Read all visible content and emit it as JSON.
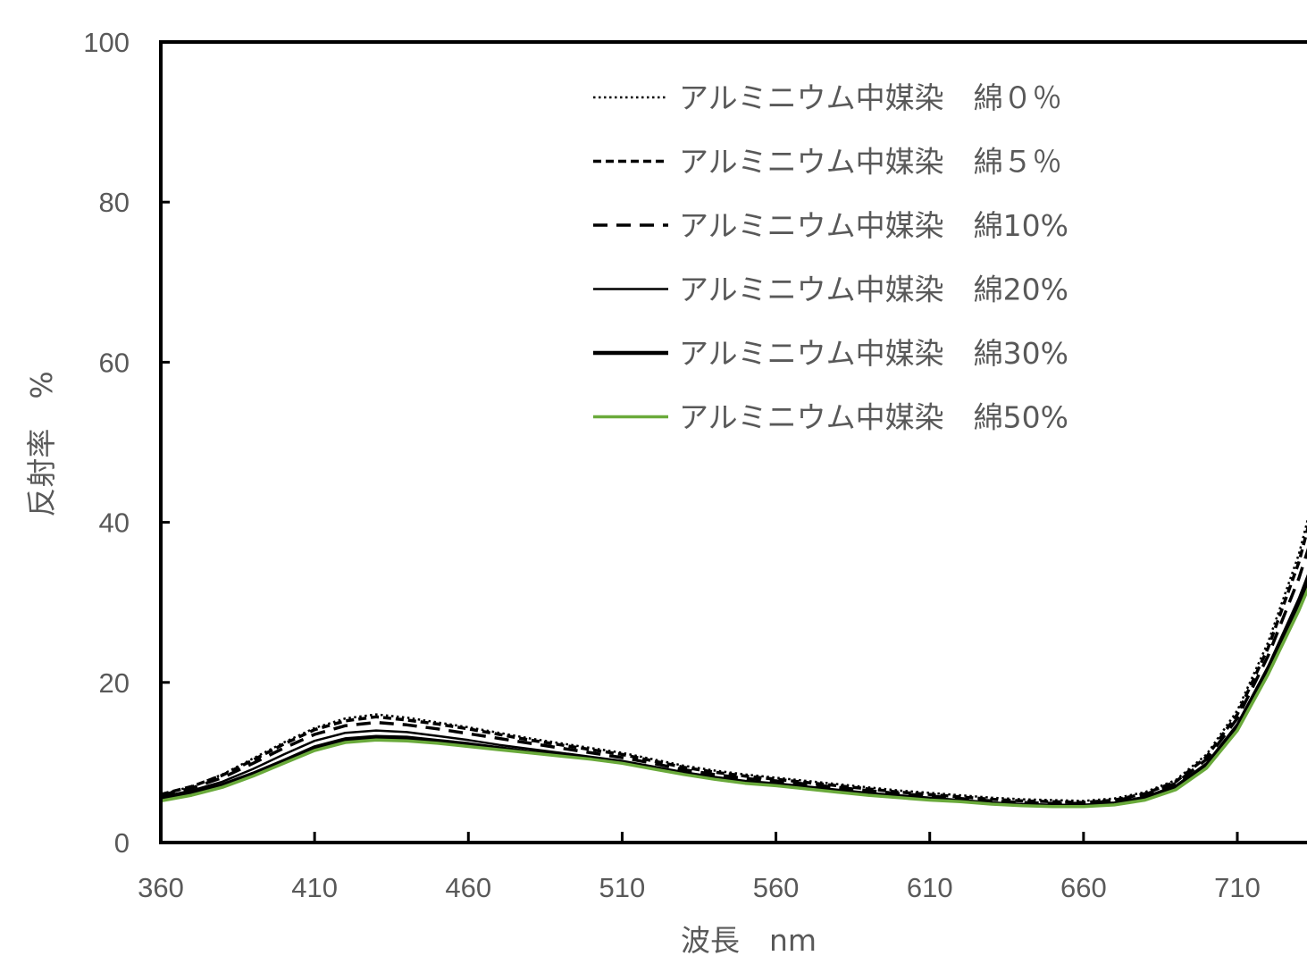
{
  "chart_data": {
    "type": "line",
    "title": "",
    "xlabel": "波長　nm",
    "ylabel": "反射率　%",
    "xlim": [
      360,
      735
    ],
    "ylim": [
      0,
      100
    ],
    "x_ticks": [
      360,
      410,
      460,
      510,
      560,
      610,
      660,
      710
    ],
    "y_ticks": [
      0,
      20,
      40,
      60,
      80,
      100
    ],
    "grid": false,
    "legend_position": "top-right",
    "x": [
      360,
      370,
      380,
      390,
      400,
      410,
      420,
      430,
      440,
      450,
      460,
      470,
      480,
      490,
      500,
      510,
      520,
      530,
      540,
      550,
      560,
      570,
      580,
      590,
      600,
      610,
      620,
      630,
      640,
      650,
      660,
      670,
      680,
      690,
      700,
      710,
      720,
      730,
      735
    ],
    "series": [
      {
        "name": "アルミニウム中媒染　綿０％",
        "style": "dotted",
        "color": "#000000",
        "values": [
          6.0,
          7.0,
          8.5,
          10.5,
          12.5,
          14.3,
          15.5,
          16.0,
          15.6,
          15.0,
          14.4,
          13.7,
          13.0,
          12.4,
          11.8,
          11.2,
          10.4,
          9.6,
          9.0,
          8.5,
          8.1,
          7.7,
          7.3,
          6.9,
          6.5,
          6.2,
          5.9,
          5.6,
          5.4,
          5.3,
          5.2,
          5.5,
          6.3,
          7.8,
          11.0,
          16.5,
          25.0,
          36.0,
          43.5
        ]
      },
      {
        "name": "アルミニウム中媒染　綿５％",
        "style": "dashed-short",
        "color": "#000000",
        "values": [
          6.0,
          7.0,
          8.4,
          10.3,
          12.3,
          14.1,
          15.2,
          15.7,
          15.3,
          14.8,
          14.2,
          13.5,
          12.8,
          12.2,
          11.6,
          11.0,
          10.2,
          9.4,
          8.8,
          8.3,
          7.9,
          7.5,
          7.1,
          6.7,
          6.3,
          6.0,
          5.7,
          5.4,
          5.2,
          5.1,
          5.0,
          5.3,
          6.1,
          7.6,
          10.7,
          16.0,
          24.3,
          35.0,
          42.3
        ]
      },
      {
        "name": "アルミニウム中媒染　綿10%",
        "style": "dashed-long",
        "color": "#000000",
        "values": [
          5.9,
          6.8,
          8.1,
          9.9,
          11.8,
          13.5,
          14.6,
          15.0,
          14.7,
          14.2,
          13.6,
          13.0,
          12.4,
          11.8,
          11.2,
          10.6,
          9.9,
          9.1,
          8.5,
          8.0,
          7.7,
          7.3,
          6.9,
          6.5,
          6.1,
          5.8,
          5.5,
          5.2,
          5.0,
          4.9,
          4.9,
          5.2,
          6.0,
          7.4,
          10.4,
          15.5,
          23.3,
          33.0,
          39.0
        ]
      },
      {
        "name": "アルミニウム中媒染　綿20%",
        "style": "solid-thin",
        "color": "#000000",
        "values": [
          5.7,
          6.5,
          7.6,
          9.2,
          11.0,
          12.7,
          13.7,
          14.0,
          13.8,
          13.3,
          12.8,
          12.2,
          11.7,
          11.2,
          10.7,
          10.2,
          9.5,
          8.8,
          8.2,
          7.7,
          7.4,
          7.0,
          6.6,
          6.2,
          5.9,
          5.6,
          5.3,
          5.0,
          4.8,
          4.7,
          4.7,
          5.0,
          5.7,
          7.1,
          9.9,
          14.8,
          22.0,
          30.5,
          35.5
        ]
      },
      {
        "name": "アルミニウム中媒染　綿30%",
        "style": "solid-thick",
        "color": "#000000",
        "values": [
          5.5,
          6.2,
          7.2,
          8.6,
          10.2,
          11.9,
          12.9,
          13.2,
          13.1,
          12.7,
          12.3,
          11.8,
          11.3,
          10.9,
          10.5,
          10.0,
          9.3,
          8.6,
          8.0,
          7.5,
          7.2,
          6.8,
          6.4,
          6.0,
          5.7,
          5.4,
          5.2,
          4.9,
          4.7,
          4.6,
          4.6,
          4.8,
          5.4,
          6.8,
          9.6,
          14.5,
          21.7,
          30.0,
          34.5
        ]
      },
      {
        "name": "アルミニウム中媒染　綿50%",
        "style": "solid-green",
        "color": "#6aaa3b",
        "values": [
          5.2,
          5.9,
          6.9,
          8.3,
          9.9,
          11.5,
          12.5,
          12.8,
          12.7,
          12.4,
          12.0,
          11.6,
          11.2,
          10.8,
          10.4,
          9.9,
          9.2,
          8.5,
          7.9,
          7.4,
          7.1,
          6.7,
          6.3,
          5.9,
          5.6,
          5.3,
          5.1,
          4.8,
          4.6,
          4.5,
          4.5,
          4.7,
          5.3,
          6.6,
          9.3,
          14.0,
          21.0,
          29.0,
          33.5
        ]
      }
    ]
  }
}
